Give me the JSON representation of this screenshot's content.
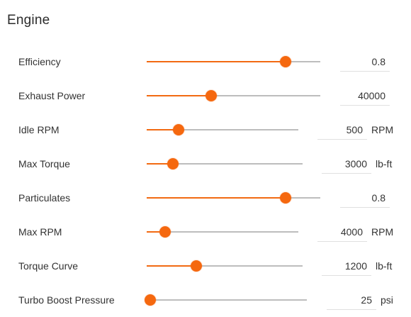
{
  "title": "Engine",
  "accent_color": "#f26a12",
  "rows": [
    {
      "label": "Efficiency",
      "value": "0.8",
      "unit": "",
      "level": 0.8
    },
    {
      "label": "Exhaust Power",
      "value": "40000",
      "unit": "",
      "level": 0.37
    },
    {
      "label": "Idle RPM",
      "value": "500",
      "unit": "RPM",
      "level": 0.21
    },
    {
      "label": "Max Torque",
      "value": "3000",
      "unit": "lb-ft",
      "level": 0.17
    },
    {
      "label": "Particulates",
      "value": "0.8",
      "unit": "",
      "level": 0.8
    },
    {
      "label": "Max RPM",
      "value": "4000",
      "unit": "RPM",
      "level": 0.12
    },
    {
      "label": "Torque Curve",
      "value": "1200",
      "unit": "lb-ft",
      "level": 0.32
    },
    {
      "label": "Turbo Boost Pressure",
      "value": "25",
      "unit": "psi",
      "level": 0.02
    }
  ]
}
